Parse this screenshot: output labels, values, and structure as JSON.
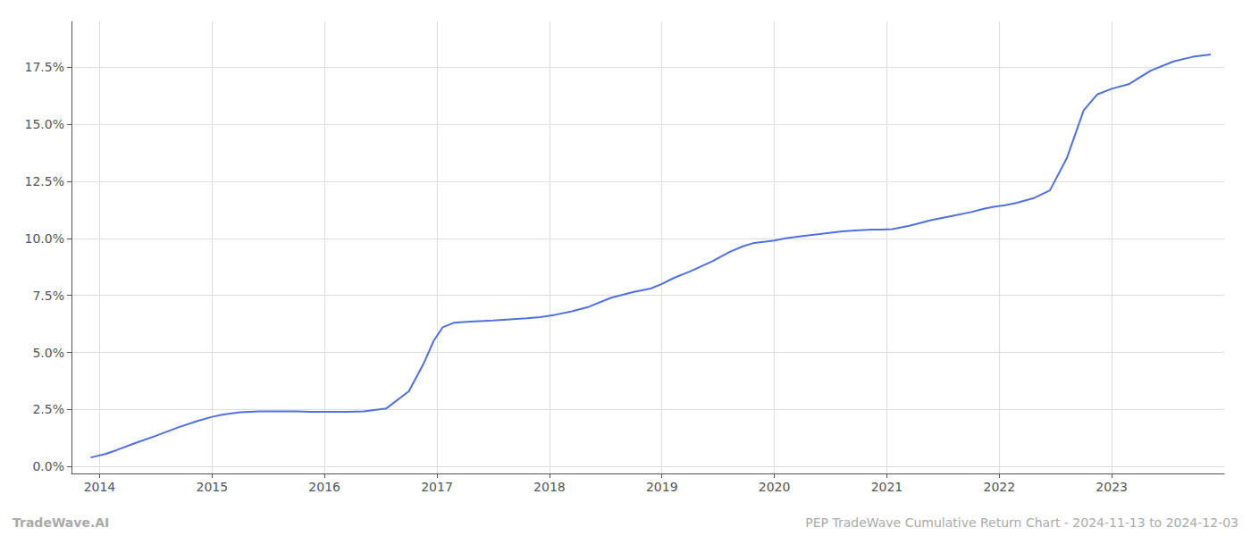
{
  "chart_data": {
    "type": "line",
    "x": [
      2013.92,
      2014.05,
      2014.15,
      2014.3,
      2014.5,
      2014.7,
      2014.87,
      2015.0,
      2015.1,
      2015.25,
      2015.42,
      2015.6,
      2015.75,
      2015.88,
      2016.0,
      2016.1,
      2016.2,
      2016.35,
      2016.55,
      2016.75,
      2016.88,
      2016.97,
      2017.05,
      2017.15,
      2017.3,
      2017.5,
      2017.65,
      2017.8,
      2017.92,
      2018.05,
      2018.2,
      2018.35,
      2018.55,
      2018.75,
      2018.9,
      2019.0,
      2019.1,
      2019.25,
      2019.45,
      2019.6,
      2019.72,
      2019.82,
      2019.92,
      2020.0,
      2020.1,
      2020.25,
      2020.42,
      2020.6,
      2020.75,
      2020.87,
      2020.95,
      2021.05,
      2021.2,
      2021.4,
      2021.6,
      2021.75,
      2021.87,
      2021.95,
      2022.05,
      2022.15,
      2022.3,
      2022.45,
      2022.6,
      2022.75,
      2022.87,
      2023.0,
      2023.15,
      2023.35,
      2023.55,
      2023.72,
      2023.88
    ],
    "values": [
      0.4,
      0.55,
      0.72,
      1.0,
      1.35,
      1.72,
      2.0,
      2.18,
      2.28,
      2.38,
      2.42,
      2.42,
      2.42,
      2.4,
      2.4,
      2.4,
      2.4,
      2.42,
      2.55,
      3.3,
      4.5,
      5.5,
      6.1,
      6.3,
      6.35,
      6.4,
      6.45,
      6.5,
      6.55,
      6.65,
      6.8,
      7.0,
      7.4,
      7.65,
      7.8,
      8.0,
      8.25,
      8.55,
      9.0,
      9.4,
      9.65,
      9.8,
      9.85,
      9.9,
      10.0,
      10.1,
      10.2,
      10.3,
      10.35,
      10.38,
      10.38,
      10.4,
      10.55,
      10.8,
      11.0,
      11.15,
      11.3,
      11.38,
      11.45,
      11.55,
      11.75,
      12.1,
      13.5,
      15.6,
      16.3,
      16.55,
      16.75,
      17.35,
      17.75,
      17.95,
      18.05
    ],
    "xlim": [
      2013.75,
      2024.0
    ],
    "xticks": [
      2014,
      2015,
      2016,
      2017,
      2018,
      2019,
      2020,
      2021,
      2022,
      2023
    ],
    "ylim": [
      -0.3,
      19.5
    ],
    "yticks": [
      {
        "value": 0.0,
        "label": "0.0%"
      },
      {
        "value": 2.5,
        "label": "2.5%"
      },
      {
        "value": 5.0,
        "label": "5.0%"
      },
      {
        "value": 7.5,
        "label": "7.5%"
      },
      {
        "value": 10.0,
        "label": "10.0%"
      },
      {
        "value": 12.5,
        "label": "12.5%"
      },
      {
        "value": 15.0,
        "label": "15.0%"
      },
      {
        "value": 17.5,
        "label": "17.5%"
      }
    ],
    "grid": true,
    "annotations": [
      "TradeWave.AI",
      "PEP TradeWave Cumulative Return Chart - 2024-11-13 to 2024-12-03"
    ]
  }
}
